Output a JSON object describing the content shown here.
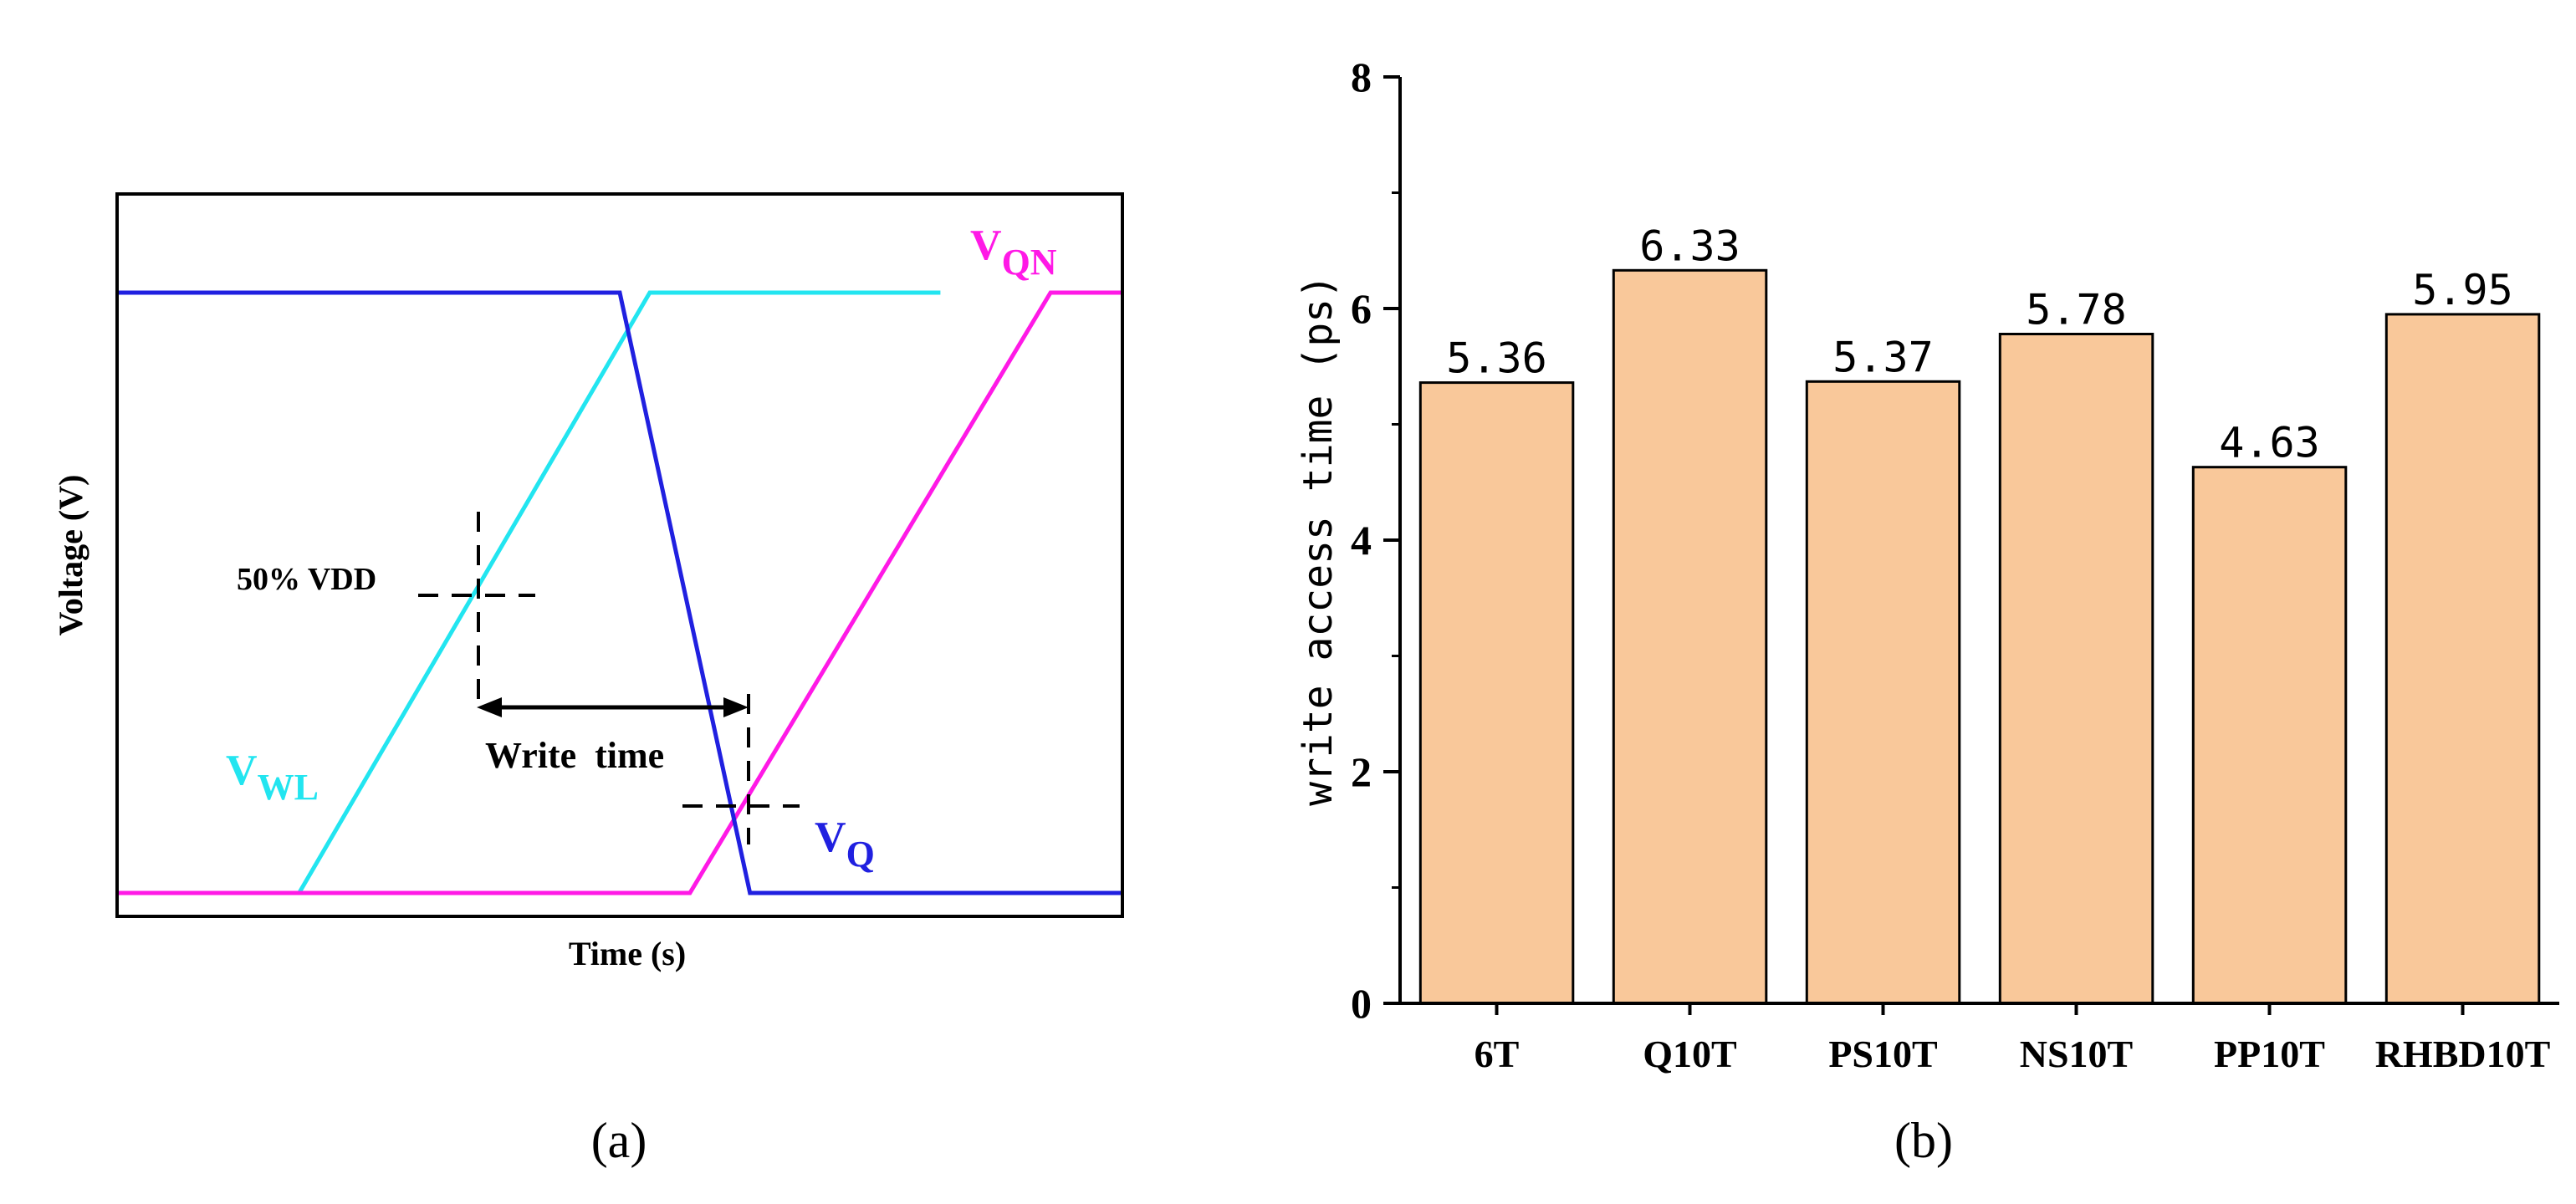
{
  "chart_data": [
    {
      "type": "line",
      "panel_label": "(a)",
      "xlabel": "Time (s)",
      "ylabel": "Voltage (V)",
      "series": [
        {
          "name": "V",
          "subscript": "WL",
          "color": "#22E5F0",
          "points": [
            [
              0.18,
              0.0
            ],
            [
              0.53,
              1.0
            ],
            [
              0.82,
              1.0
            ]
          ]
        },
        {
          "name": "V",
          "subscript": "QN",
          "color": "#FF19E6",
          "points": [
            [
              0.0,
              0.0
            ],
            [
              0.57,
              0.0
            ],
            [
              0.93,
              1.0
            ],
            [
              1.0,
              1.0
            ]
          ]
        },
        {
          "name": "V",
          "subscript": "Q",
          "color": "#2020E0",
          "points": [
            [
              0.0,
              1.0
            ],
            [
              0.5,
              1.0
            ],
            [
              0.63,
              0.0
            ],
            [
              1.0,
              0.0
            ]
          ]
        }
      ],
      "annotations": {
        "threshold_label": "50% VDD",
        "interval_label": "Write  time"
      }
    },
    {
      "type": "bar",
      "panel_label": "(b)",
      "categories": [
        "6T",
        "Q10T",
        "PS10T",
        "NS10T",
        "PP10T",
        "RHBD10T"
      ],
      "values": [
        5.36,
        6.33,
        5.37,
        5.78,
        4.63,
        5.95
      ],
      "value_labels": [
        "5.36",
        "6.33",
        "5.37",
        "5.78",
        "4.63",
        "5.95"
      ],
      "xlabel": "",
      "ylabel": "write access time (ps)",
      "ylim": [
        0,
        8
      ],
      "yticks": [
        0,
        2,
        4,
        6,
        8
      ],
      "bar_color": "#F9C89A",
      "grid": false
    }
  ]
}
